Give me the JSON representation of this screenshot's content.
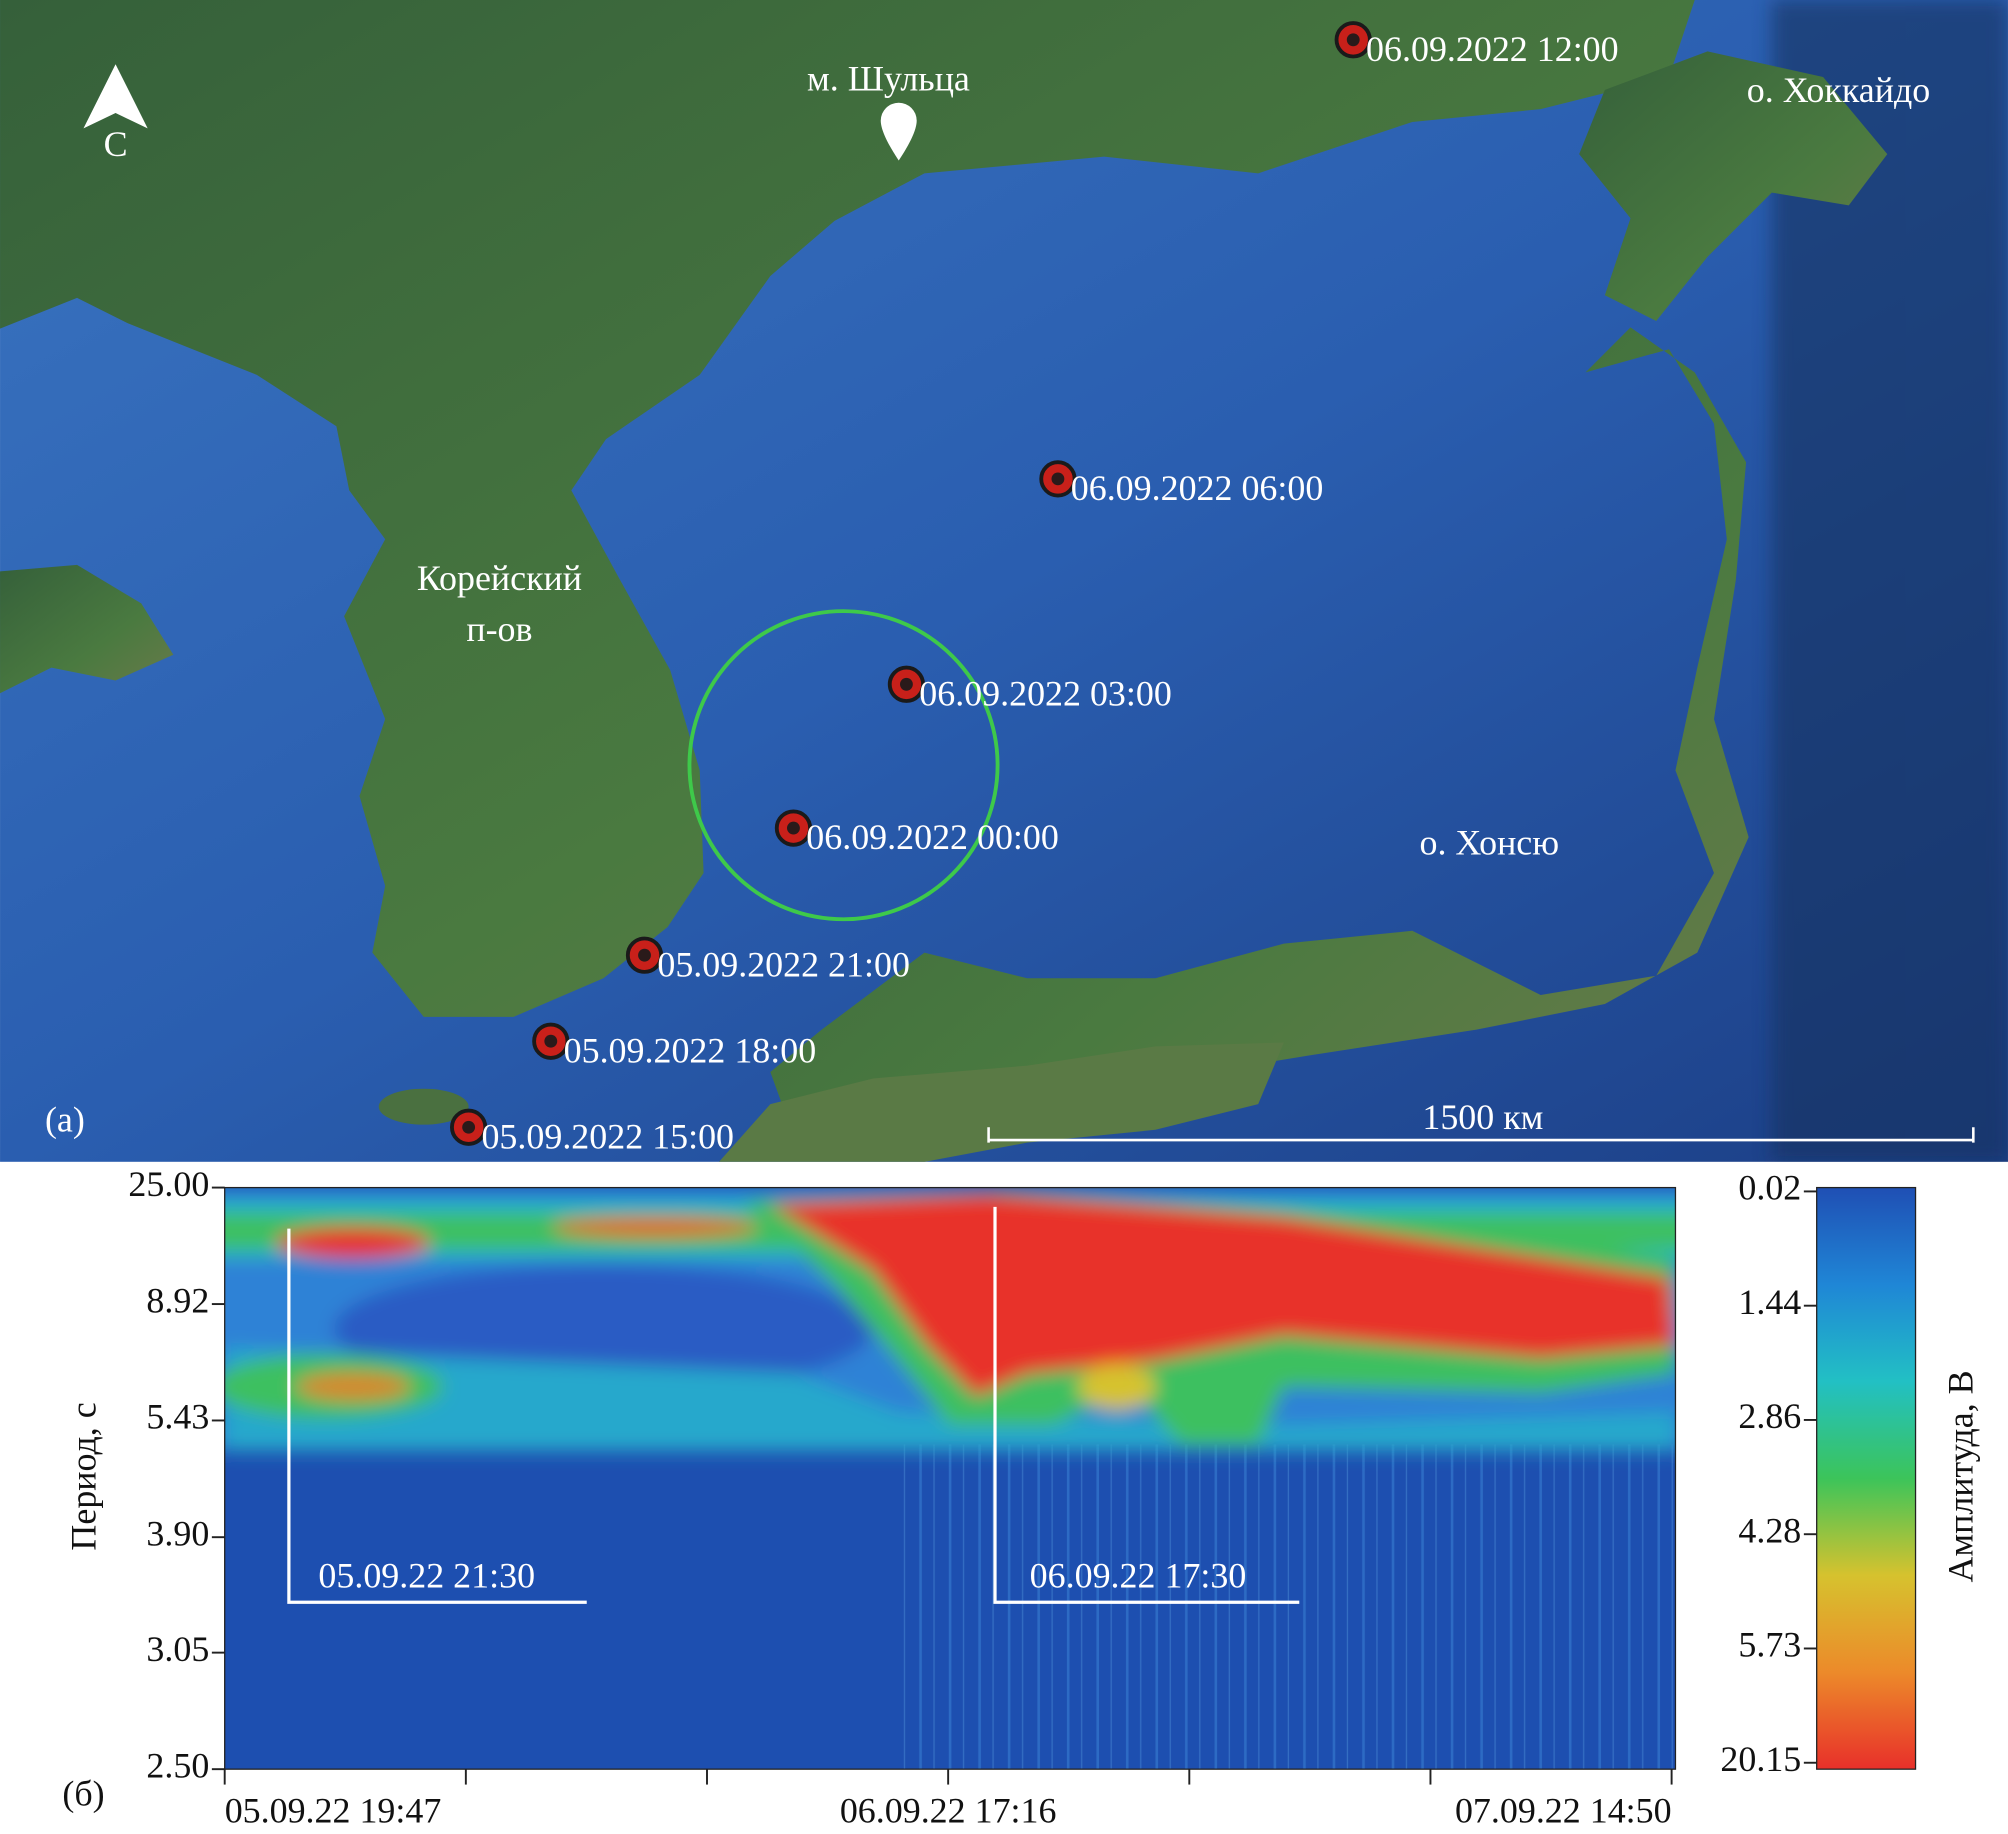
{
  "map": {
    "panel_label": "(а)",
    "north_label": "С",
    "places": {
      "cape": "м. Шульца",
      "hokkaido": "о. Хоккайдо",
      "korea": [
        "Корейский",
        "п-ов"
      ],
      "honshu": "о. Хонсю"
    },
    "scale_label": "1500 км",
    "track": [
      "06.09.2022 12:00",
      "06.09.2022 06:00",
      "06.09.2022 03:00",
      "06.09.2022 00:00",
      "05.09.2022 21:00",
      "05.09.2022 18:00",
      "05.09.2022 15:00"
    ]
  },
  "chart_data": {
    "type": "heatmap",
    "panel_label": "(б)",
    "y_label": "Период, с",
    "categories": [
      "05.09.22 19:47",
      null,
      null,
      "06.09.22 17:16",
      null,
      null,
      "07.09.22 14:50"
    ],
    "yscale": "reciprocal",
    "ylim": [
      2.5,
      25
    ],
    "yticks": [
      {
        "value": 25,
        "label": "25.00"
      },
      8.92,
      5.43,
      {
        "value": 3.9,
        "label": "3.90"
      },
      3.05,
      {
        "value": 2.5,
        "label": "2.50"
      }
    ],
    "annotations": [
      "05.09.22 21:30",
      "06.09.22 17:30"
    ],
    "colorbar": {
      "label": "Амплитуда, В",
      "ticks": [
        0.02,
        1.44,
        2.86,
        4.28,
        5.73,
        20.15
      ],
      "colors": [
        "#1f4fb4",
        "#1f86d6",
        "#22c0c4",
        "#3cc45a",
        "#d6c22e",
        "#ec8a2a",
        "#e8302a"
      ]
    }
  }
}
